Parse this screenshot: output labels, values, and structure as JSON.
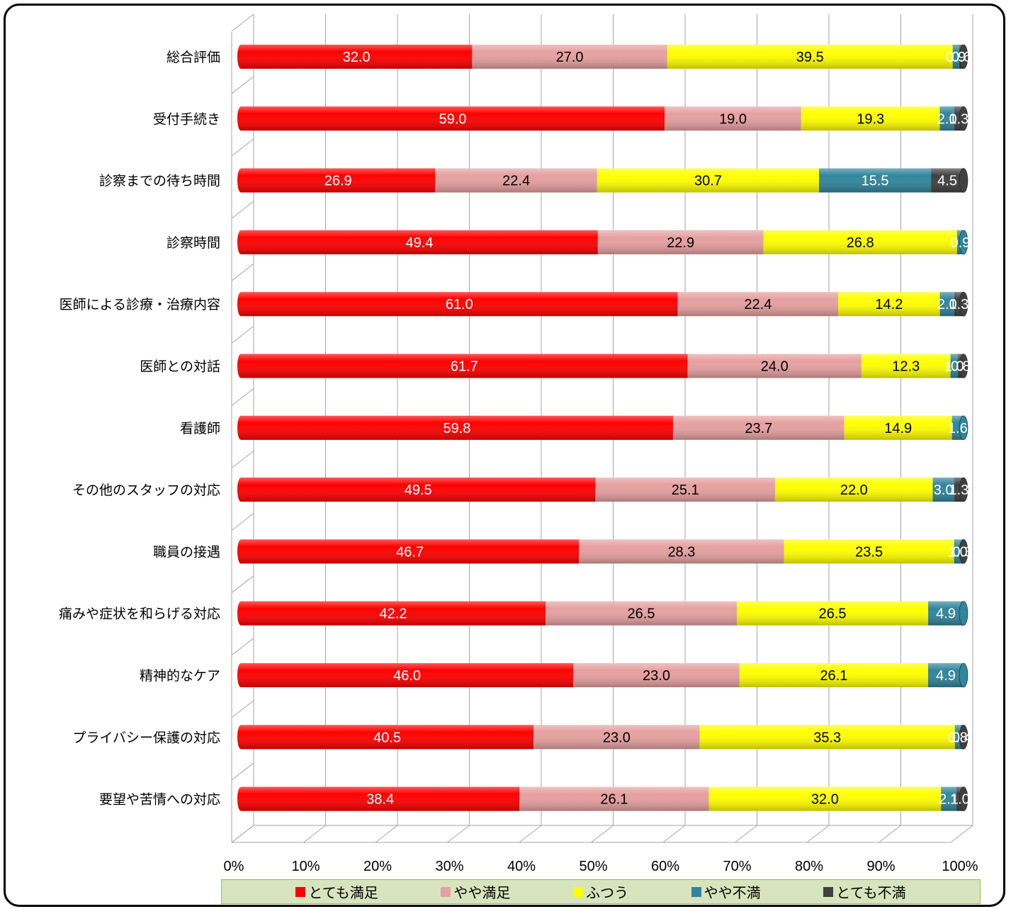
{
  "chart_data": {
    "type": "bar",
    "orientation": "horizontal",
    "stacked": "percent",
    "categories": [
      "総合評価",
      "受付手続き",
      "診察までの待ち時間",
      "診察時間",
      "医師による診療・治療内容",
      "医師との対話",
      "看護師",
      "その他のスタッフの対応",
      "職員の接遇",
      "痛みや症状を和らげる対応",
      "精神的なケア",
      "プライバシー保護の対応",
      "要望や苦情への対応"
    ],
    "series": [
      {
        "name": "とても満足",
        "color": "#ff0000",
        "label_color": "#ffffff",
        "values": [
          32.0,
          59.0,
          26.9,
          49.4,
          61.0,
          61.7,
          59.8,
          49.5,
          46.7,
          42.2,
          46.0,
          40.5,
          38.4
        ]
      },
      {
        "name": "やや満足",
        "color": "#e6a0a0",
        "label_color": "#000000",
        "values": [
          27.0,
          19.0,
          22.4,
          22.9,
          22.4,
          24.0,
          23.7,
          25.1,
          28.3,
          26.5,
          23.0,
          23.0,
          26.1
        ]
      },
      {
        "name": "ふつう",
        "color": "#ffff00",
        "label_color": "#000000",
        "values": [
          39.5,
          19.3,
          30.7,
          26.8,
          14.2,
          12.3,
          14.9,
          22.0,
          23.5,
          26.5,
          26.1,
          35.3,
          32.0
        ]
      },
      {
        "name": "やや不満",
        "color": "#31859c",
        "label_color": "#ffffff",
        "values": [
          0.9,
          2.0,
          15.5,
          0.9,
          2.0,
          1.0,
          1.6,
          3.0,
          1.0,
          4.9,
          4.9,
          0.8,
          2.1
        ]
      },
      {
        "name": "とても不満",
        "color": "#404040",
        "label_color": "#ffffff",
        "values": [
          0.6,
          1.3,
          4.5,
          0.0,
          1.3,
          0.8,
          0.0,
          1.3,
          0.3,
          0.0,
          0.0,
          0.4,
          1.0
        ]
      }
    ],
    "point_labels": [
      [
        "32.0",
        "27.0",
        "39.5",
        "0.9",
        "0.6"
      ],
      [
        "59.0",
        "19.0",
        "19.3",
        "2.0",
        "1.3"
      ],
      [
        "26.9",
        "22.4",
        "30.7",
        "15.5",
        "4.5"
      ],
      [
        "49.4",
        "22.9",
        "26.8",
        "0.9",
        ""
      ],
      [
        "61.0",
        "22.4",
        "14.2",
        "2.0",
        "1.3"
      ],
      [
        "61.7",
        "24.0",
        "12.3",
        "1.0",
        "0.8"
      ],
      [
        "59.8",
        "23.7",
        "14.9",
        "1.6",
        ""
      ],
      [
        "49.5",
        "25.1",
        "22.0",
        "3.0",
        "1.3"
      ],
      [
        "46.7",
        "28.3",
        "23.5",
        "1.0",
        "0.3"
      ],
      [
        "42.2",
        "26.5",
        "26.5",
        "4.9",
        ""
      ],
      [
        "46.0",
        "23.0",
        "26.1",
        "4.9",
        ""
      ],
      [
        "40.5",
        "23.0",
        "35.3",
        "0.8",
        "0.4"
      ],
      [
        "38.4",
        "26.1",
        "32.0",
        "2.1",
        "1.0"
      ]
    ],
    "x_ticks": [
      "0%",
      "10%",
      "20%",
      "30%",
      "40%",
      "50%",
      "60%",
      "70%",
      "80%",
      "90%",
      "100%"
    ],
    "xlim": [
      0,
      100
    ],
    "grid": true,
    "legend_position": "bottom"
  }
}
